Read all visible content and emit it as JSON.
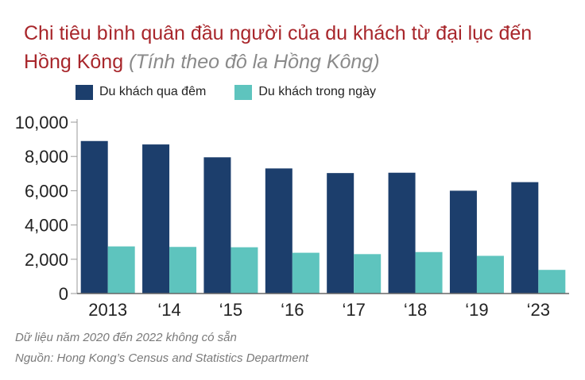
{
  "chart_data": {
    "type": "bar",
    "title": "Chi tiêu bình quân đầu người của du khách từ đại lục đến Hồng Kông",
    "subtitle": "(Tính theo đô la Hồng Kông)",
    "categories": [
      "2013",
      "‘14",
      "‘15",
      "‘16",
      "‘17",
      "‘18",
      "‘19",
      "‘23"
    ],
    "series": [
      {
        "name": "Du khách qua đêm",
        "color": "#1c3e6c",
        "values": [
          8900,
          8700,
          7950,
          7300,
          7030,
          7050,
          6000,
          6500
        ]
      },
      {
        "name": "Du khách trong ngày",
        "color": "#5ec4be",
        "values": [
          2750,
          2720,
          2700,
          2380,
          2300,
          2420,
          2200,
          1380
        ]
      }
    ],
    "y_ticks": [
      "10,000",
      "8,000",
      "6,000",
      "4,000",
      "2,000",
      "0"
    ],
    "y_tick_values": [
      10000,
      8000,
      6000,
      4000,
      2000,
      0
    ],
    "ylim": [
      0,
      10000
    ],
    "grid": false,
    "legend_position": "top-left"
  },
  "footnotes": {
    "note": "Dữ liệu năm 2020 đến 2022 không có sẵn",
    "source": "Nguồn: Hong Kong’s Census and Statistics Department"
  }
}
